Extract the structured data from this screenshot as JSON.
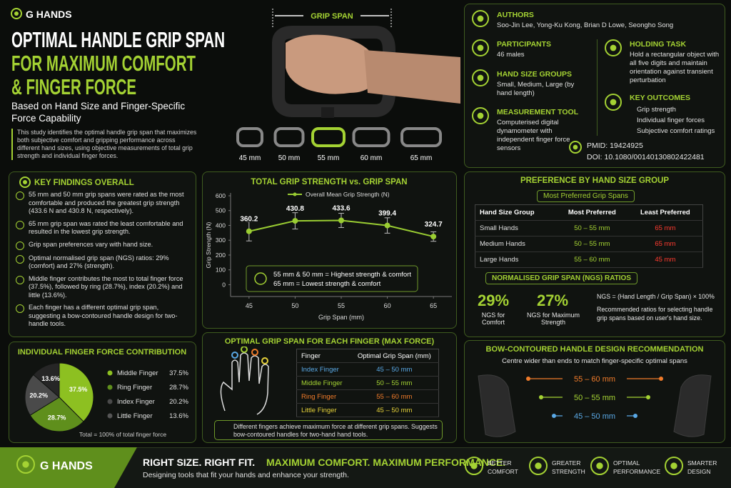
{
  "header": {
    "brand": "G HANDS",
    "title": [
      "OPTIMAL HANDLE GRIP SPAN",
      "FOR MAXIMUM COMFORT",
      "& FINGER FORCE"
    ],
    "subtitle": "Based on Hand Size and Finger-Specific Force Capability",
    "intro": "This study identifies the optimal handle grip span that maximizes both subjective comfort and gripping performance across different hand sizes, using objective measurements of total grip strength and individual finger forces."
  },
  "hero": {
    "label": "GRIP SPAN",
    "spans": [
      "45 mm",
      "50 mm",
      "55 mm",
      "60 mm",
      "65 mm"
    ]
  },
  "study": {
    "authors": {
      "title": "AUTHORS",
      "text": "Soo-Jin Lee, Yong-Ku Kong, Brian D Lowe, Seongho Song"
    },
    "participants": {
      "title": "PARTICIPANTS",
      "text": "46 males"
    },
    "hand_size_groups": {
      "title": "HAND SIZE GROUPS",
      "text": "Small, Medium, Large (by hand length)"
    },
    "measurement_tool": {
      "title": "MEASUREMENT TOOL",
      "text": "Computerised digital dynamometer with independent finger force sensors"
    },
    "holding_task": {
      "title": "HOLDING TASK",
      "text": "Hold a rectangular object with all five digits and maintain orientation against transient perturbation"
    },
    "key_outcomes": {
      "title": "KEY OUTCOMES",
      "items": [
        "Grip strength",
        "Individual finger forces",
        "Subjective comfort ratings"
      ]
    },
    "pmid": "PMID: 19424925",
    "doi": "DOI: 10.1080/00140130802422481"
  },
  "key_findings": {
    "title": "KEY FINDINGS OVERALL",
    "items": [
      "55 mm and 50 mm grip spans were rated as the most comfortable and produced the greatest grip strength (433.6 N and 430.8 N, respectively).",
      "65 mm grip span was rated the least comfortable and resulted in the lowest grip strength.",
      "Grip span preferences vary with hand size.",
      "Optimal normalised grip span (NGS) ratios: 29% (comfort) and 27% (strength).",
      "Middle finger contributes the most to total finger force (37.5%), followed by ring (28.7%), index (20.2%) and little (13.6%).",
      "Each finger has a different optimal grip span, suggesting a bow-contoured handle design for two-handle tools."
    ]
  },
  "chart_data": [
    {
      "type": "line",
      "title": "TOTAL GRIP STRENGTH vs. GRIP SPAN",
      "xlabel": "Grip Span (mm)",
      "ylabel": "Grip Strength (N)",
      "x": [
        45,
        50,
        55,
        60,
        65
      ],
      "xlim": [
        43,
        67
      ],
      "xticks": [
        45,
        50,
        55,
        60,
        65
      ],
      "ylim": [
        -80,
        600
      ],
      "yticks": [
        0,
        100,
        200,
        300,
        400,
        500,
        600
      ],
      "grid": false,
      "series": [
        {
          "name": "Overall Mean Grip Strength (N)",
          "color": "#9acd32",
          "values": [
            360.2,
            430.8,
            433.6,
            399.4,
            324.7
          ],
          "errors": [
            65,
            55,
            48,
            52,
            32
          ]
        }
      ],
      "annotations": [
        "55 mm & 50 mm = Highest strength & comfort",
        "65 mm = Lowest strength & comfort"
      ]
    },
    {
      "type": "pie",
      "title": "INDIVIDUAL FINGER FORCE CONTRIBUTION",
      "categories": [
        "Middle Finger",
        "Ring Finger",
        "Index Finger",
        "Little Finger"
      ],
      "values": [
        37.5,
        28.7,
        20.2,
        13.6
      ],
      "value_labels": [
        "37.5%",
        "28.7%",
        "20.2%",
        "13.6%"
      ],
      "colors": [
        "#8dc021",
        "#5f8f1c",
        "#4a4a4a",
        "#262626"
      ],
      "note": "Total = 100% of total finger force"
    }
  ],
  "finger_spans": {
    "title": "OPTIMAL GRIP SPAN FOR EACH FINGER (MAX FORCE)",
    "header": [
      "Finger",
      "Optimal Grip Span (mm)"
    ],
    "rows": [
      [
        "Index Finger",
        "45 – 50 mm"
      ],
      [
        "Middle Finger",
        "50 – 55 mm"
      ],
      [
        "Ring Finger",
        "55 – 60 mm"
      ],
      [
        "Little Finger",
        "45 – 50 mm"
      ]
    ],
    "colors": [
      "#5aa9e6",
      "#a4d233",
      "#f07b2a",
      "#e6d23a"
    ],
    "note": "Different fingers achieve maximum force at different grip spans. Suggests bow-contoured handles for two-hand hand tools."
  },
  "preference": {
    "title": "PREFERENCE BY HAND SIZE GROUP",
    "subtitle": "Most Preferred Grip Spans",
    "header": [
      "Hand Size Group",
      "Most Preferred",
      "Least Preferred"
    ],
    "rows": [
      [
        "Small Hands",
        "50 – 55 mm",
        "65 mm"
      ],
      [
        "Medium Hands",
        "50 – 55 mm",
        "65 mm"
      ],
      [
        "Large Hands",
        "55 – 60 mm",
        "45 mm"
      ]
    ]
  },
  "ngs": {
    "title": "NORMALISED GRIP SPAN (NGS) RATIOS",
    "comfort_value": "29%",
    "comfort_label": "NGS for Comfort",
    "strength_value": "27%",
    "strength_label": "NGS for Maximum Strength",
    "formula": "NGS = (Hand Length / Grip Span) × 100%",
    "text": "Recommended ratios for selecting handle grip spans based on user's hand size."
  },
  "bow": {
    "title": "BOW-CONTOURED HANDLE DESIGN RECOMMENDATION",
    "subtitle": "Centre wider than ends to match finger-specific optimal spans",
    "spans": [
      "55 – 60 mm",
      "50 – 55 mm",
      "45 – 50 mm"
    ],
    "colors": [
      "#f07b2a",
      "#a4d233",
      "#5aa9e6"
    ]
  },
  "footer": {
    "brand": "G HANDS",
    "tagline_a": "RIGHT SIZE. RIGHT FIT.",
    "tagline_b": "MAXIMUM COMFORT. MAXIMUM PERFORMANCE.",
    "sub": "Designing tools that fit your hands and enhance your strength.",
    "badges": [
      "BETTER COMFORT",
      "GREATER STRENGTH",
      "OPTIMAL PERFORMANCE",
      "SMARTER DESIGN"
    ]
  }
}
